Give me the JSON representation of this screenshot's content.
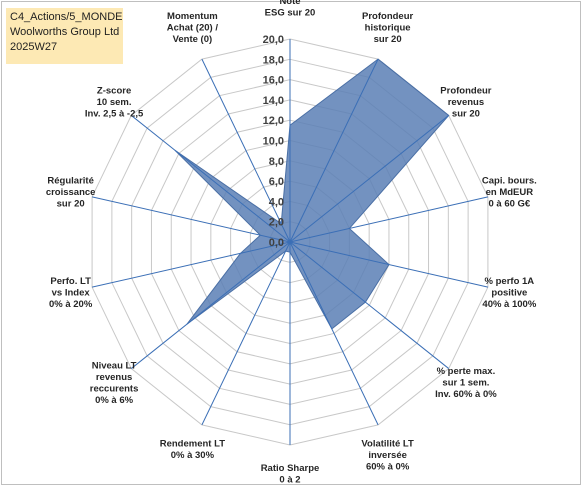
{
  "header": {
    "line1": "C4_Actions/5_MONDE",
    "line2": "Woolworths Group Ltd",
    "line3": "2025W27"
  },
  "chart_data": {
    "type": "radar",
    "rmax": 20,
    "ticks": [
      "0,0",
      "2,0",
      "4,0",
      "6,0",
      "8,0",
      "10,0",
      "12,0",
      "14,0",
      "16,0",
      "18,0",
      "20,0"
    ],
    "axes": [
      [
        "Note",
        "ESG sur 20"
      ],
      [
        "Profondeur",
        "historique",
        "sur 20"
      ],
      [
        "Profondeur",
        "revenus",
        "sur 20"
      ],
      [
        "Capi. bours.",
        "en MdEUR",
        "0 à 60 G€"
      ],
      [
        "% perfo 1A",
        "positive",
        "40% à 100%"
      ],
      [
        "% perte max.",
        "sur 1 sem.",
        "Inv. 60% à 0%"
      ],
      [
        "Volatilité LT",
        "inversée",
        "60% à 0%"
      ],
      [
        "Ratio Sharpe",
        "0 à 2"
      ],
      [
        "Rendement LT",
        "0% à 30%"
      ],
      [
        "Niveau LT",
        "revenus",
        "reccurents",
        "0% à 6%"
      ],
      [
        "Perfo. LT",
        "vs Index",
        "0% à 20%"
      ],
      [
        "Régularité",
        "croissance",
        "sur 20"
      ],
      [
        "Z-score",
        "10 sem.",
        "Inv. 2,5 à -2,5"
      ],
      [
        "Momentum",
        "Achat (20) /",
        "Vente (0)"
      ]
    ],
    "series": [
      {
        "values": [
          11.5,
          20.0,
          20.0,
          6.0,
          10.0,
          9.5,
          9.5,
          1.0,
          1.0,
          13.0,
          5.0,
          3.0,
          14.5,
          2.0
        ],
        "color": "#5b7fb5"
      }
    ],
    "grid": true
  }
}
